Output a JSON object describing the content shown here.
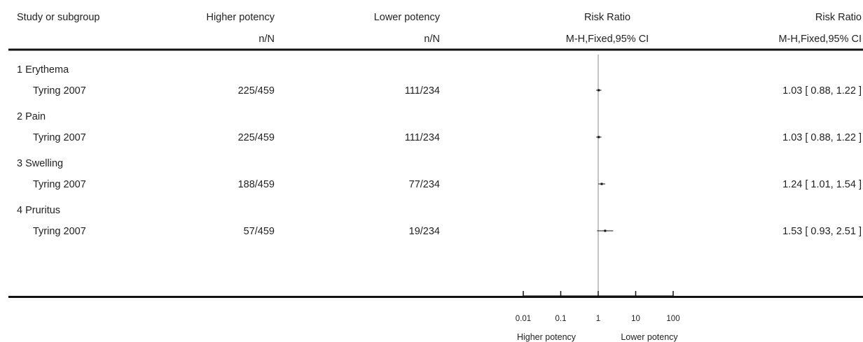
{
  "columns": {
    "study": "Study or subgroup",
    "group1": "Higher potency",
    "group1_sub": "n/N",
    "group2": "Lower potency",
    "group2_sub": "n/N",
    "plot": "Risk Ratio",
    "plot_sub": "M-H,Fixed,95% CI",
    "effect": "Risk Ratio",
    "effect_sub": "M-H,Fixed,95% CI"
  },
  "chart_data": {
    "type": "forest",
    "x_scale": "log",
    "xlim": [
      0.01,
      100
    ],
    "null_line": 1,
    "ticks": [
      0.01,
      0.1,
      1,
      10,
      100
    ],
    "tick_labels": [
      "0.01",
      "0.1",
      "1",
      "10",
      "100"
    ],
    "favours_left": "Higher potency",
    "favours_right": "Lower potency",
    "subgroups": [
      {
        "title": "1 Erythema",
        "studies": [
          {
            "study": "Tyring 2007",
            "group1": "225/459",
            "group2": "111/234",
            "rr": 1.03,
            "ci_low": 0.88,
            "ci_high": 1.22,
            "label": "1.03 [ 0.88, 1.22 ]"
          }
        ]
      },
      {
        "title": "2 Pain",
        "studies": [
          {
            "study": "Tyring 2007",
            "group1": "225/459",
            "group2": "111/234",
            "rr": 1.03,
            "ci_low": 0.88,
            "ci_high": 1.22,
            "label": "1.03 [ 0.88, 1.22 ]"
          }
        ]
      },
      {
        "title": "3 Swelling",
        "studies": [
          {
            "study": "Tyring 2007",
            "group1": "188/459",
            "group2": "77/234",
            "rr": 1.24,
            "ci_low": 1.01,
            "ci_high": 1.54,
            "label": "1.24 [ 1.01, 1.54 ]"
          }
        ]
      },
      {
        "title": "4 Pruritus",
        "studies": [
          {
            "study": "Tyring 2007",
            "group1": "57/459",
            "group2": "19/234",
            "rr": 1.53,
            "ci_low": 0.93,
            "ci_high": 2.51,
            "label": "1.53 [ 0.93, 2.51 ]"
          }
        ]
      }
    ]
  }
}
